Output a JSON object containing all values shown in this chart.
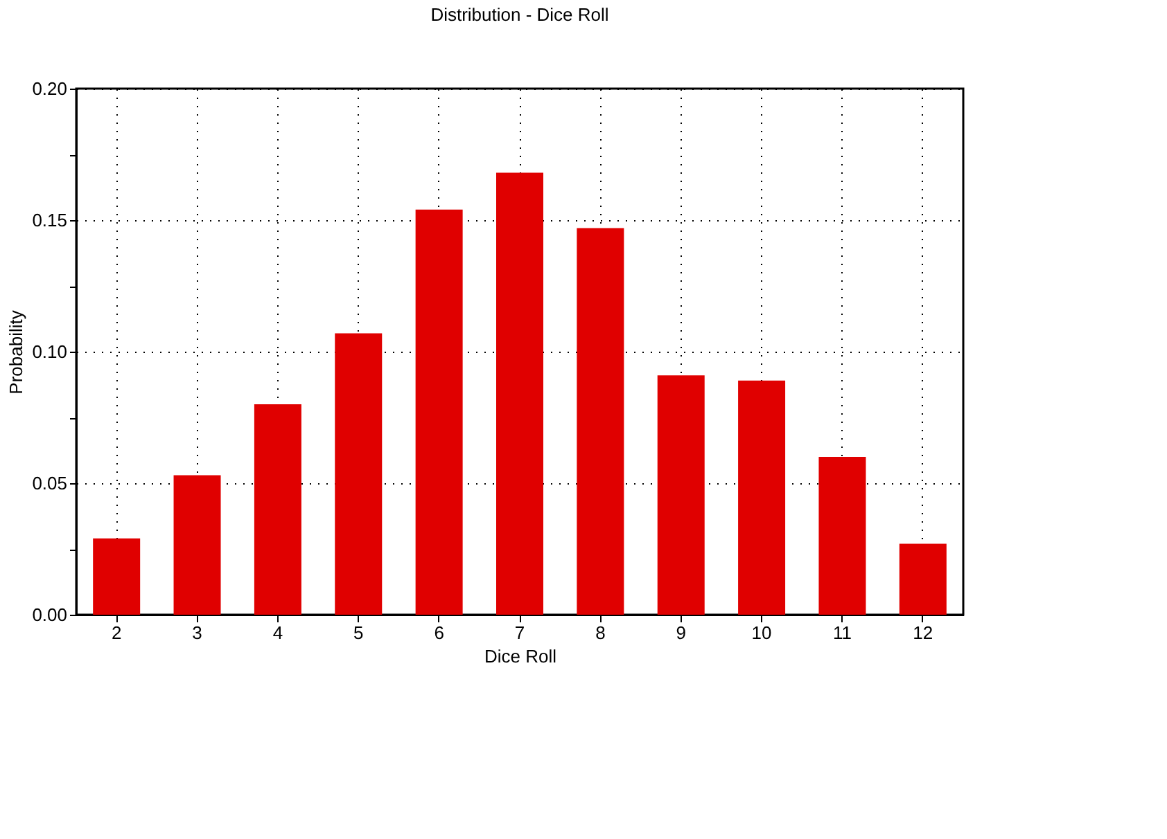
{
  "chart_data": {
    "type": "bar",
    "title": "Distribution - Dice Roll",
    "xlabel": "Dice Roll",
    "ylabel": "Probability",
    "categories": [
      "2",
      "3",
      "4",
      "5",
      "6",
      "7",
      "8",
      "9",
      "10",
      "11",
      "12"
    ],
    "values": [
      0.029,
      0.053,
      0.08,
      0.107,
      0.154,
      0.168,
      0.147,
      0.091,
      0.089,
      0.06,
      0.027
    ],
    "color": "#e00000",
    "ylim": [
      0,
      0.2
    ],
    "yticks": [
      {
        "value": 0,
        "label": "0.00"
      },
      {
        "value": 0.025,
        "label": null
      },
      0.05,
      {
        "value": 0.075,
        "label": null
      },
      {
        "value": 0.1,
        "label": "0.10"
      },
      {
        "value": 0.125,
        "label": null
      },
      0.15,
      {
        "value": 0.175,
        "label": null
      },
      {
        "value": 0.2,
        "label": "0.20"
      }
    ],
    "grid": true
  }
}
